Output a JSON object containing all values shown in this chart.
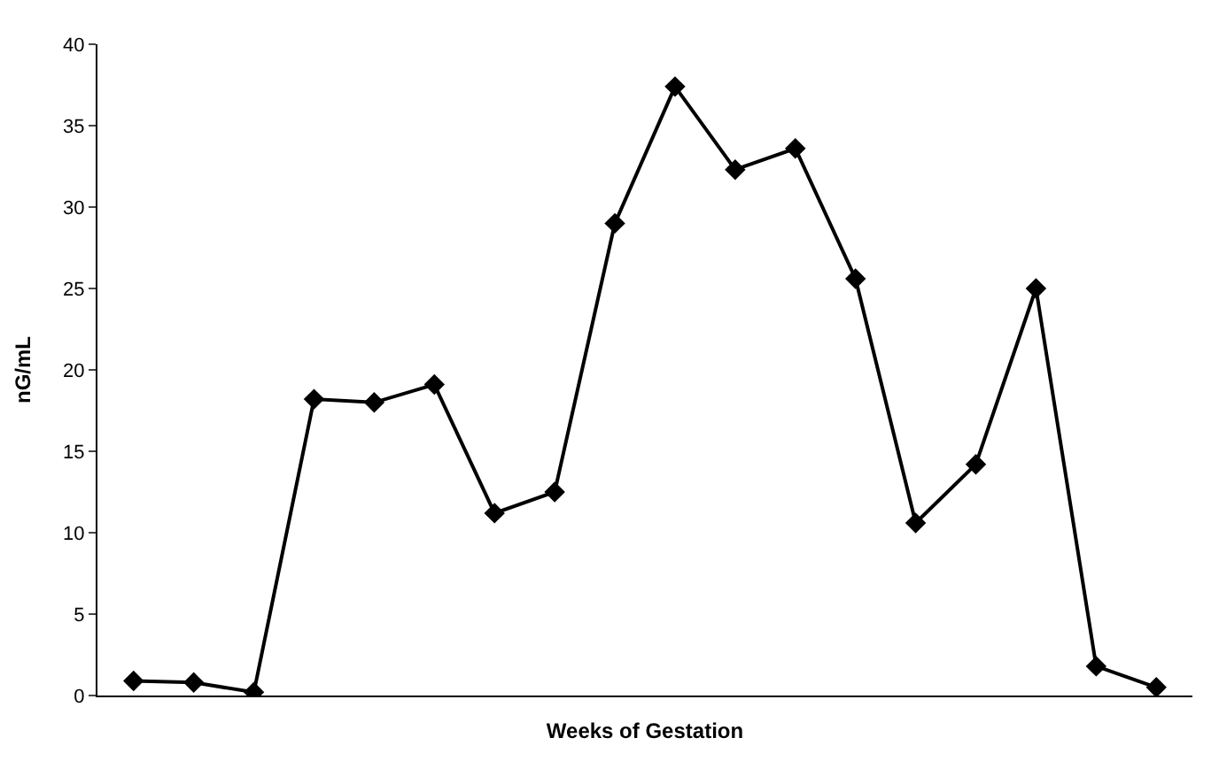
{
  "chart_data": {
    "type": "line",
    "xlabel": "Weeks of Gestation",
    "ylabel": "nG/mL",
    "categories": [
      null,
      null,
      null,
      null,
      null,
      null,
      null,
      null,
      null,
      null,
      null,
      null,
      null,
      null,
      null,
      null,
      null,
      null
    ],
    "series": [
      {
        "color": "#000000",
        "values": [
          0.9,
          0.8,
          0.2,
          18.2,
          18.0,
          19.1,
          11.2,
          12.5,
          29.0,
          37.4,
          32.3,
          33.6,
          25.6,
          10.6,
          14.2,
          25.0,
          1.8,
          0.5
        ]
      }
    ],
    "ylim": [
      0,
      40
    ],
    "yticks": [
      0,
      5,
      10,
      15,
      20,
      25,
      30,
      35,
      40
    ],
    "tick_labels": "y",
    "marker": "diamond",
    "line_style": "solid"
  }
}
